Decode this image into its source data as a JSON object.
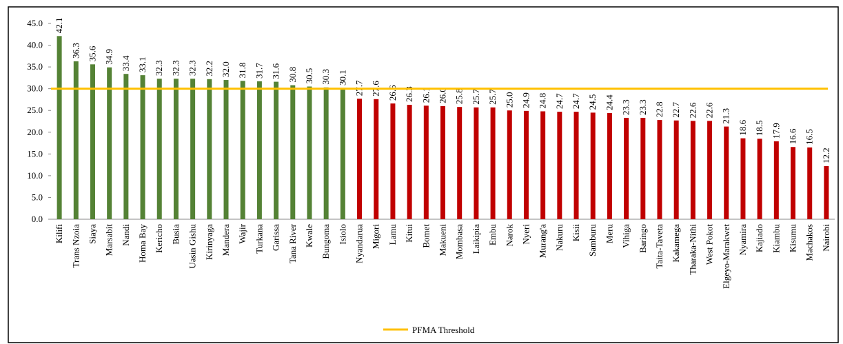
{
  "chart_data": {
    "type": "bar",
    "categories": [
      "Kilifi",
      "Trans Nzoia",
      "Siaya",
      "Marsabit",
      "Nandi",
      "Homa Bay",
      "Kericho",
      "Busia",
      "Uasin Gishu",
      "Kirinyaga",
      "Mandera",
      "Wajir",
      "Turkana",
      "Garissa",
      "Tana River",
      "Kwale",
      "Bungoma",
      "Isiolo",
      "Nyandarua",
      "Migori",
      "Lamu",
      "Kitui",
      "Bomet",
      "Makueni",
      "Mombasa",
      "Laikipia",
      "Embu",
      "Narok",
      "Nyeri",
      "Murang'a",
      "Nakuru",
      "Kisii",
      "Samburu",
      "Meru",
      "Vihiga",
      "Baringo",
      "Taita-Taveta",
      "Kakamega",
      "Tharaka-Nithi",
      "West Pokot",
      "Elgeyo-Marakwet",
      "Nyamira",
      "Kajiado",
      "Kiambu",
      "Kisumu",
      "Machakos",
      "Nairobi"
    ],
    "values": [
      42.1,
      36.3,
      35.6,
      34.9,
      33.4,
      33.1,
      32.3,
      32.3,
      32.3,
      32.2,
      32.0,
      31.8,
      31.7,
      31.6,
      30.8,
      30.5,
      30.3,
      30.1,
      27.7,
      27.6,
      26.6,
      26.3,
      26.1,
      26.0,
      25.8,
      25.7,
      25.7,
      25.0,
      24.9,
      24.8,
      24.7,
      24.7,
      24.5,
      24.4,
      23.3,
      23.3,
      22.8,
      22.7,
      22.6,
      22.6,
      21.3,
      18.6,
      18.5,
      17.9,
      16.6,
      16.5,
      12.2
    ],
    "value_labels": [
      "42.1",
      "36.3",
      "35.6",
      "34.9",
      "33.4",
      "33.1",
      "32.3",
      "32.3",
      "32.3",
      "32.2",
      "32.0",
      "31.8",
      "31.7",
      "31.6",
      "30.8",
      "30.5",
      "30.3",
      "30.1",
      "27.7",
      "27.6",
      "26.6",
      "26.3",
      "26.1",
      "26.0",
      "25.8",
      "25.7",
      "25.7",
      "25.0",
      "24.9",
      "24.8",
      "24.7",
      "24.7",
      "24.5",
      "24.4",
      "23.3",
      "23.3",
      "22.8",
      "22.7",
      "22.6",
      "22.6",
      "21.3",
      "18.6",
      "18.5",
      "17.9",
      "16.6",
      "16.5",
      "12.2"
    ],
    "color_above": "#548235",
    "color_below": "#c00000",
    "threshold": {
      "name": "PFMA Threshold",
      "value": 30,
      "color": "#ffc000"
    },
    "ylim": [
      0,
      45
    ],
    "yticks": [
      {
        "value": 0,
        "label": "0.0"
      },
      {
        "value": 5,
        "label": "5.0"
      },
      {
        "value": 10,
        "label": "10.0"
      },
      {
        "value": 15,
        "label": "15.0"
      },
      {
        "value": 20,
        "label": "20.0"
      },
      {
        "value": 25,
        "label": "25.0"
      },
      {
        "value": 30,
        "label": "30.0"
      },
      {
        "value": 35,
        "label": "35.0"
      },
      {
        "value": 40,
        "label": "40.0"
      },
      {
        "value": 45,
        "label": "45.0"
      }
    ],
    "grid": false,
    "legend": "bottom"
  }
}
